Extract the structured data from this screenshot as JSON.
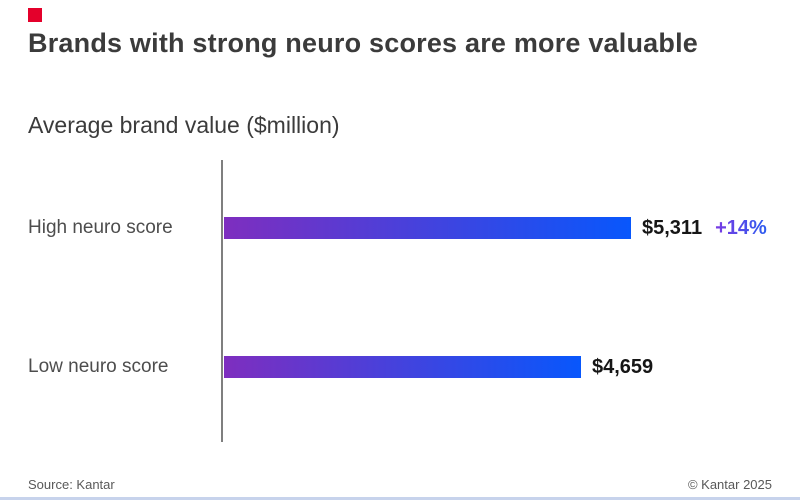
{
  "header": {
    "title": "Brands with strong neuro scores are more valuable"
  },
  "chart": {
    "subtitle": "Average brand value ($million)"
  },
  "chart_data": {
    "type": "bar",
    "orientation": "horizontal",
    "title": "Brands with strong neuro scores are more valuable",
    "subtitle": "Average brand value ($million)",
    "xlabel": "Average brand value ($million)",
    "ylabel": "",
    "categories": [
      "High neuro score",
      "Low neuro score"
    ],
    "values": [
      5311,
      4659
    ],
    "value_labels": [
      "$5,311",
      "$4,659"
    ],
    "annotations": [
      {
        "category": "High neuro score",
        "text": "+14%"
      }
    ],
    "xlim": [
      0,
      5311
    ],
    "grid": false,
    "legend": false,
    "value_label_position": "end"
  },
  "colors": {
    "logo": "#e4002b",
    "bar_start": "#7e2ebf",
    "bar_end": "#0857fc",
    "pct_start": "#7a3ae2",
    "pct_end": "#2b5cf0",
    "rule": "#c7d3ec"
  },
  "footer": {
    "source": "Source: Kantar",
    "copyright": "© Kantar 2025"
  }
}
